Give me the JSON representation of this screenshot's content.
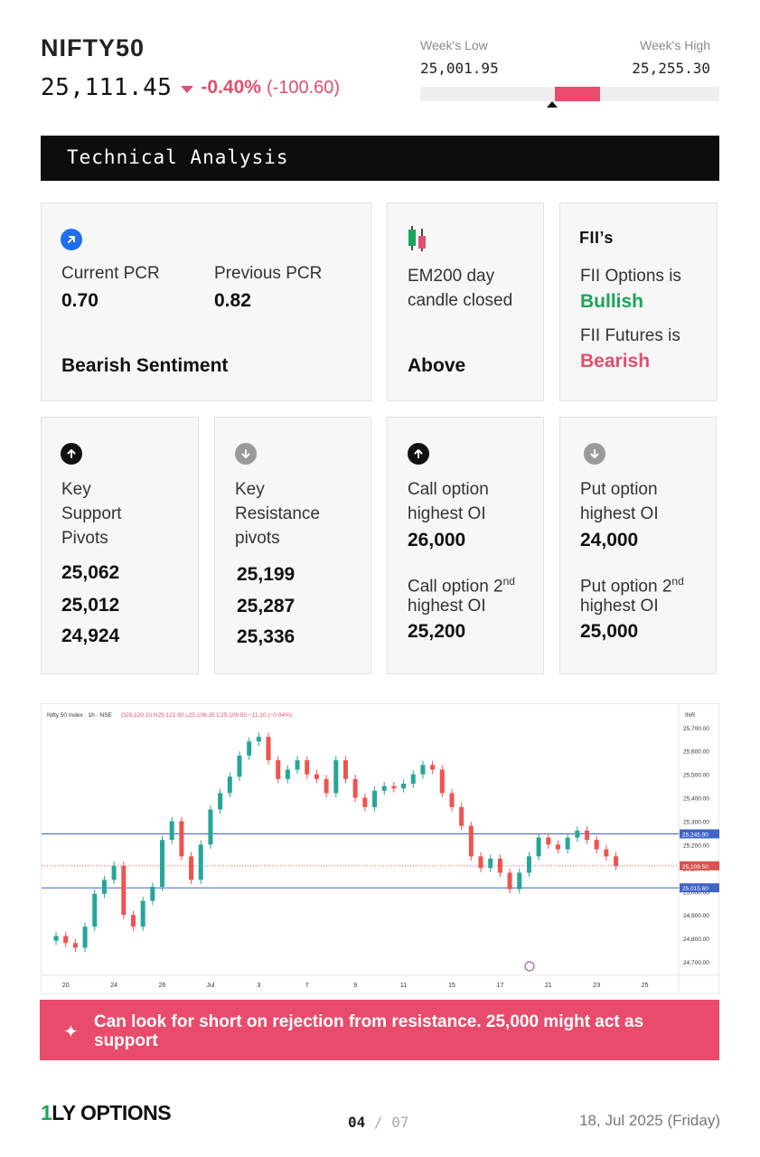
{
  "header": {
    "ticker": "NIFTY50",
    "price": "25,111.45",
    "change_pct": "-0.40%",
    "change_abs": "(-100.60)",
    "week_low_label": "Week's Low",
    "week_low_value": "25,001.95",
    "week_high_label": "Week's High",
    "week_high_value": "25,255.30",
    "week_range_fill": {
      "start": 0.45,
      "end": 0.6
    },
    "week_range_marker": 0.44
  },
  "banner": {
    "title": "Technical Analysis"
  },
  "pcr_card": {
    "current_label": "Current PCR",
    "current_value": "0.70",
    "previous_label": "Previous PCR",
    "previous_value": "0.82",
    "sentiment": "Bearish Sentiment",
    "icon": "arrow-up-right-icon"
  },
  "ema_card": {
    "line1": "EM200 day",
    "line2": "candle closed",
    "result": "Above",
    "icon": "candlestick-icon"
  },
  "fii_card": {
    "title": "FII’s",
    "options_label": "FII Options is",
    "options_value": "Bullish",
    "futures_label": "FII Futures is",
    "futures_value": "Bearish"
  },
  "support_card": {
    "line1": "Key",
    "line2": "Support",
    "line3": "Pivots",
    "values": [
      "25,062",
      "25,012",
      "24,924"
    ]
  },
  "resistance_card": {
    "line1": "Key",
    "line2": "Resistance",
    "line3": "pivots",
    "values": [
      "25,199",
      "25,287",
      "25,336"
    ]
  },
  "call_card": {
    "l1a": "Call option",
    "l1b": "highest OI",
    "v1": "26,000",
    "l2a": "Call option 2",
    "l2sup": "nd",
    "l2b": "highest OI",
    "v2": "25,200"
  },
  "put_card": {
    "l1a": "Put option",
    "l1b": "highest OI",
    "v1": "24,000",
    "l2a": "Put option 2",
    "l2sup": "nd",
    "l2b": "highest OI",
    "v2": "25,000"
  },
  "chart_data": {
    "type": "candlestick",
    "title": "Nifty 50 Index · 1h · NSE",
    "ohlc_text": "O25,120.10 H25,121.90 L25,106.25 C25,109.50 −11.10 (−0.04%)",
    "currency": "INR",
    "ylim": [
      24650,
      25730
    ],
    "y_ticks": [
      "25,700.00",
      "25,600.00",
      "25,500.00",
      "25,400.00",
      "25,300.00",
      "25,200.00",
      "25,100.00",
      "25,000.00",
      "24,900.00",
      "24,800.00",
      "24,700.00"
    ],
    "y_tick_values": [
      25700,
      25600,
      25500,
      25400,
      25300,
      25200,
      25100,
      25000,
      24900,
      24800,
      24700
    ],
    "x_ticks": [
      "20",
      "24",
      "26",
      "Jul",
      "3",
      "7",
      "9",
      "11",
      "15",
      "17",
      "21",
      "23",
      "25"
    ],
    "x_tick_index": [
      2,
      7,
      12,
      17,
      22,
      27,
      32,
      37,
      42,
      47,
      52,
      57,
      62
    ],
    "hlines": [
      {
        "value": 25245.9,
        "label": "25,245.90",
        "color": "#3f63c8"
      },
      {
        "value": 25109.5,
        "label": "25,109.50",
        "color": "#d9534f"
      },
      {
        "value": 25015.6,
        "label": "25,015.60",
        "color": "#3f63c8"
      }
    ],
    "closes": [
      24810,
      24780,
      24760,
      24850,
      24990,
      25050,
      25110,
      24900,
      24850,
      24960,
      25020,
      25220,
      25300,
      25150,
      25050,
      25200,
      25350,
      25420,
      25490,
      25580,
      25640,
      25660,
      25560,
      25480,
      25520,
      25560,
      25500,
      25480,
      25420,
      25560,
      25480,
      25400,
      25360,
      25430,
      25450,
      25440,
      25460,
      25500,
      25540,
      25520,
      25420,
      25360,
      25280,
      25150,
      25100,
      25140,
      25080,
      25010,
      25080,
      25150,
      25230,
      25200,
      25180,
      25230,
      25260,
      25220,
      25180,
      25150,
      25109.5
    ]
  },
  "note": {
    "icon": "sparkle-icon",
    "text": "Can look for short on rejection from resistance. 25,000 might act as support"
  },
  "footer": {
    "logo_one": "1",
    "logo_text": "LY OPTIONS",
    "page_current": "04",
    "page_sep": "/",
    "page_total": "07",
    "date": "18, Jul 2025 (Friday)"
  }
}
